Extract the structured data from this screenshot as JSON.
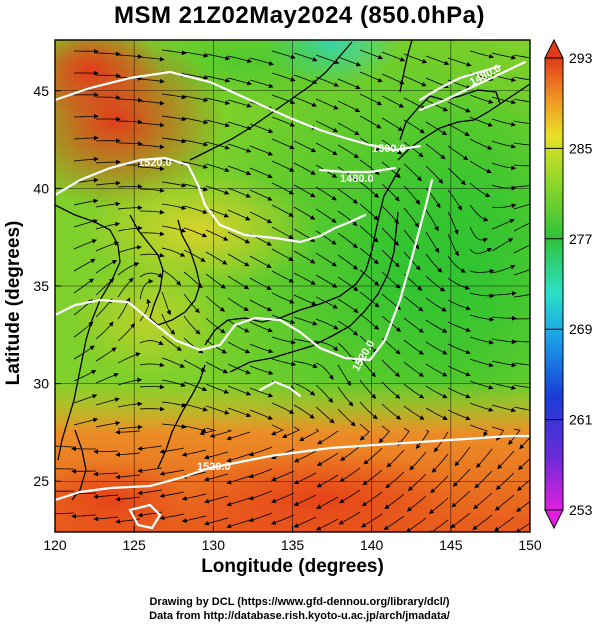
{
  "title": "MSM 21Z02May2024 (850.0hPa)",
  "xaxis": {
    "label": "Longitude (degrees)",
    "ticks": [
      "120",
      "125",
      "130",
      "135",
      "140",
      "145",
      "150"
    ],
    "values": [
      120,
      125,
      130,
      135,
      140,
      145,
      150
    ],
    "range": [
      120,
      150
    ]
  },
  "yaxis": {
    "label": "Latitude  (degrees)",
    "ticks": [
      "25",
      "30",
      "35",
      "40",
      "45"
    ],
    "values": [
      25,
      30,
      35,
      40,
      45
    ],
    "range": [
      22.4,
      47.6
    ]
  },
  "colorbar": {
    "ticks": [
      "293",
      "285",
      "277",
      "269",
      "261",
      "253"
    ],
    "values": [
      293,
      285,
      277,
      269,
      261,
      253
    ],
    "range": [
      253,
      293
    ]
  },
  "contour_labels": [
    "1520.0",
    "1500.0",
    "1480.0",
    "1480.0",
    "1520.0",
    "1520.0"
  ],
  "credits": {
    "line1": "Drawing by DCL (https://www.gfd-dennou.org/library/dcl/)",
    "line2": "Data from http://database.rish.kyoto-u.ac.jp/arch/jmadata/"
  },
  "colors": {
    "warm": "#e8501a",
    "mid": "#e6c829",
    "green": "#42c22c",
    "cool": "#2dd6c8",
    "contour": "#ffffff",
    "coast": "#000000"
  }
}
